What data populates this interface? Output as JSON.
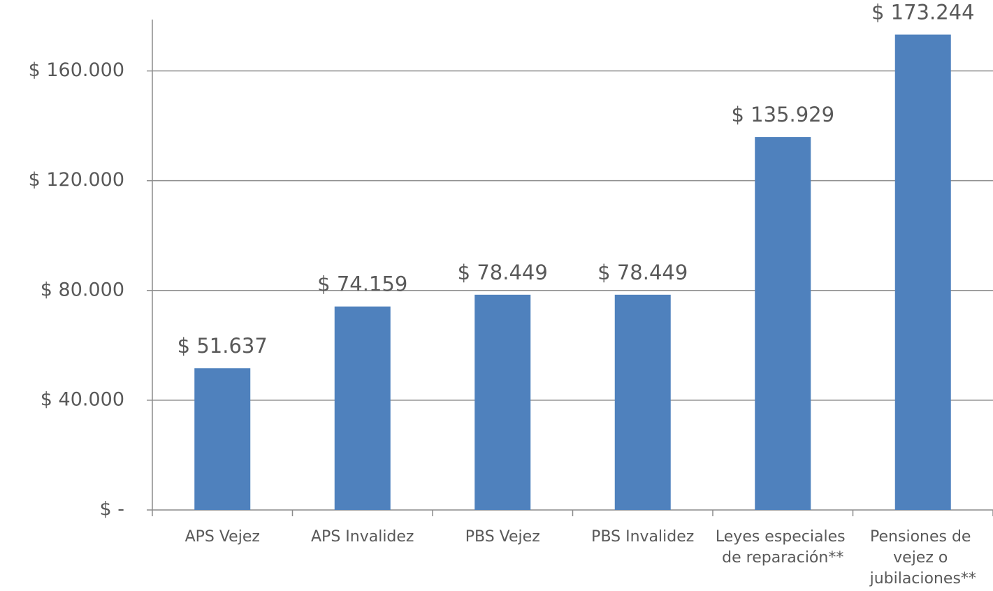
{
  "chart_data": {
    "type": "bar",
    "categories": [
      "APS Vejez",
      "APS Invalidez",
      "PBS Vejez",
      "PBS Invalidez",
      "Leyes especiales de reparación**",
      "Pensiones de vejez o jubilaciones**"
    ],
    "values": [
      51637,
      74159,
      78449,
      78449,
      135929,
      173244
    ],
    "value_labels": [
      "$ 51.637",
      "$ 74.159",
      "$ 78.449",
      "$ 78.449",
      "$ 135.929",
      "$ 173.244"
    ],
    "color": "#4f81bd",
    "ylim": [
      0,
      180000
    ],
    "yticks": [
      {
        "value": 0,
        "label": "$ -"
      },
      {
        "value": 40000,
        "label": "$ 40.000"
      },
      {
        "value": 80000,
        "label": "$ 80.000"
      },
      {
        "value": 120000,
        "label": "$ 120.000"
      },
      {
        "value": 160000,
        "label": "$ 160.000"
      }
    ],
    "grid": true
  }
}
